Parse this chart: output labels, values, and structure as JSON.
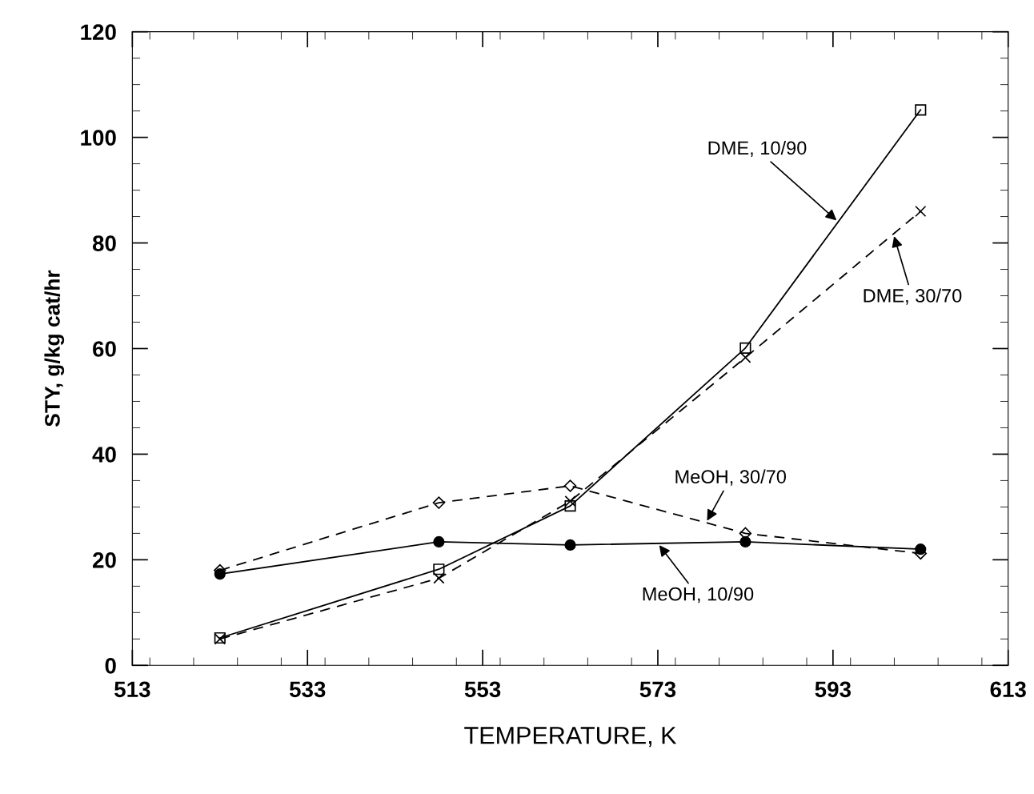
{
  "chart_data": {
    "type": "line",
    "xlabel": "TEMPERATURE, K",
    "ylabel": "STY, g/kg cat/hr",
    "x": [
      523,
      548,
      563,
      583,
      603
    ],
    "series": [
      {
        "color": "#000000",
        "marker": "square",
        "line_style": "solid",
        "values": [
          5.2,
          18.2,
          30.2,
          60.1,
          105.2
        ]
      },
      {
        "color": "#000000",
        "marker": "cross",
        "line_style": "dashed",
        "values": [
          5,
          16.5,
          31.1,
          58.3,
          86
        ]
      },
      {
        "color": "#000000",
        "marker": "diamond",
        "line_style": "dashed",
        "values": [
          18,
          30.8,
          34,
          25,
          21.2
        ]
      },
      {
        "color": "#000000",
        "marker": "circle",
        "line_style": "solid",
        "values": [
          17.3,
          23.4,
          22.8,
          23.4,
          22
        ]
      }
    ],
    "annotations": [
      {
        "text": "DME, 10/90",
        "x": 593.6,
        "y": 84
      },
      {
        "text": "DME, 30/70",
        "x": 599.9,
        "y": 81.7
      },
      {
        "text": "MeOH, 30/70",
        "x": 578.5,
        "y": 27
      },
      {
        "text": "MeOH, 10/90",
        "x": 573,
        "y": 23.1
      }
    ],
    "xlim": [
      513,
      613
    ],
    "xticks": [
      513,
      533,
      553,
      573,
      593,
      613
    ],
    "ylim": [
      0,
      120
    ],
    "yticks": [
      0,
      20,
      40,
      60,
      80,
      100,
      120
    ],
    "grid": false,
    "legend": false
  }
}
